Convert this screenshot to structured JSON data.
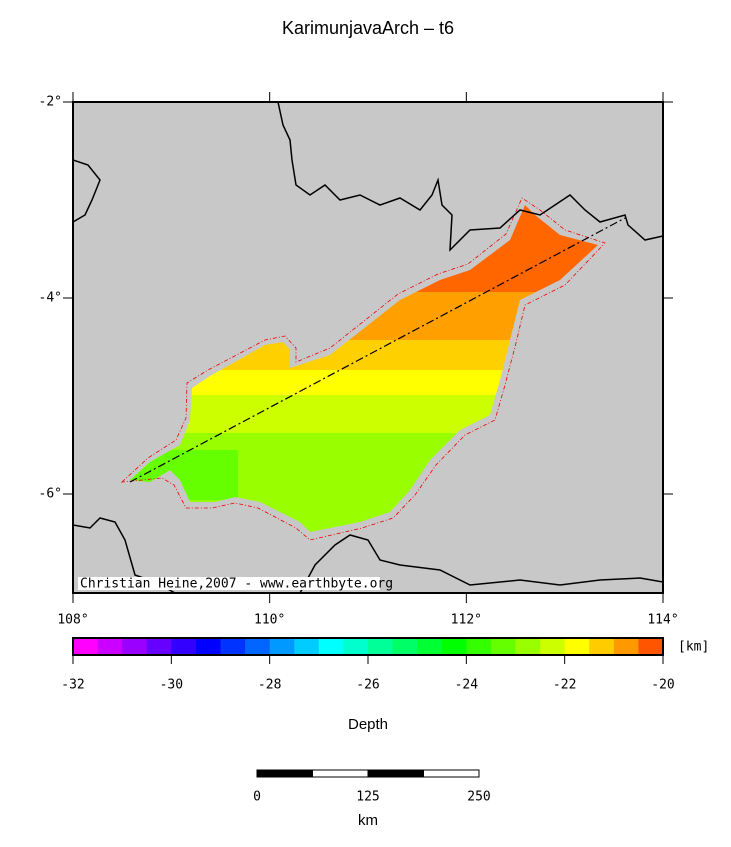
{
  "header": {
    "title": "KarimunjavaArch – t6"
  },
  "map": {
    "lat_labels": [
      "-2°",
      "-4°",
      "-6°"
    ],
    "lon_labels": [
      "108°",
      "110°",
      "112°",
      "114°"
    ],
    "credit": "Christian Heine,2007 - www.earthbyte.org"
  },
  "colorbar": {
    "unit": "[km]",
    "label": "Depth",
    "ticks": [
      "-32",
      "-30",
      "-28",
      "-26",
      "-24",
      "-22",
      "-20"
    ],
    "colors": [
      "#ff00ff",
      "#cc00ff",
      "#9900ff",
      "#6600ff",
      "#3300ff",
      "#0000ff",
      "#0033ff",
      "#0066ff",
      "#0099ff",
      "#00ccff",
      "#00ffff",
      "#00ffcc",
      "#00ff99",
      "#00ff66",
      "#00ff33",
      "#00ff00",
      "#33ff00",
      "#66ff00",
      "#99ff00",
      "#ccff00",
      "#ffff00",
      "#ffcc00",
      "#ff9900",
      "#ff5500"
    ]
  },
  "scale_bar": {
    "labels": [
      "0",
      "125",
      "250"
    ],
    "unit": "km"
  }
}
